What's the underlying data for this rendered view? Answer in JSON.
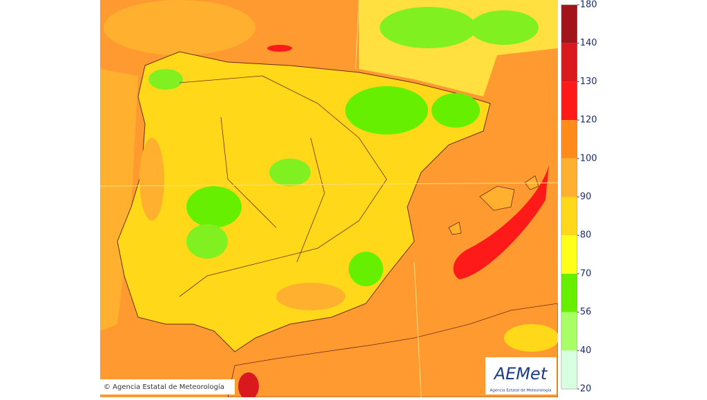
{
  "map": {
    "copyright": "© Agencia Estatal de Meteorología",
    "logo": {
      "name": "AEMet",
      "subtitle": "Agencia Estatal de Meteorología"
    },
    "legend": {
      "ticks": [
        180,
        140,
        130,
        120,
        100,
        90,
        80,
        70,
        56,
        40,
        20
      ],
      "colors": [
        "#a3141a",
        "#d9191e",
        "#ff1a1a",
        "#ff8c1a",
        "#ffb02e",
        "#ffd81a",
        "#ffff1a",
        "#66f000",
        "#a8ff66",
        "#d8ffe0"
      ]
    }
  }
}
